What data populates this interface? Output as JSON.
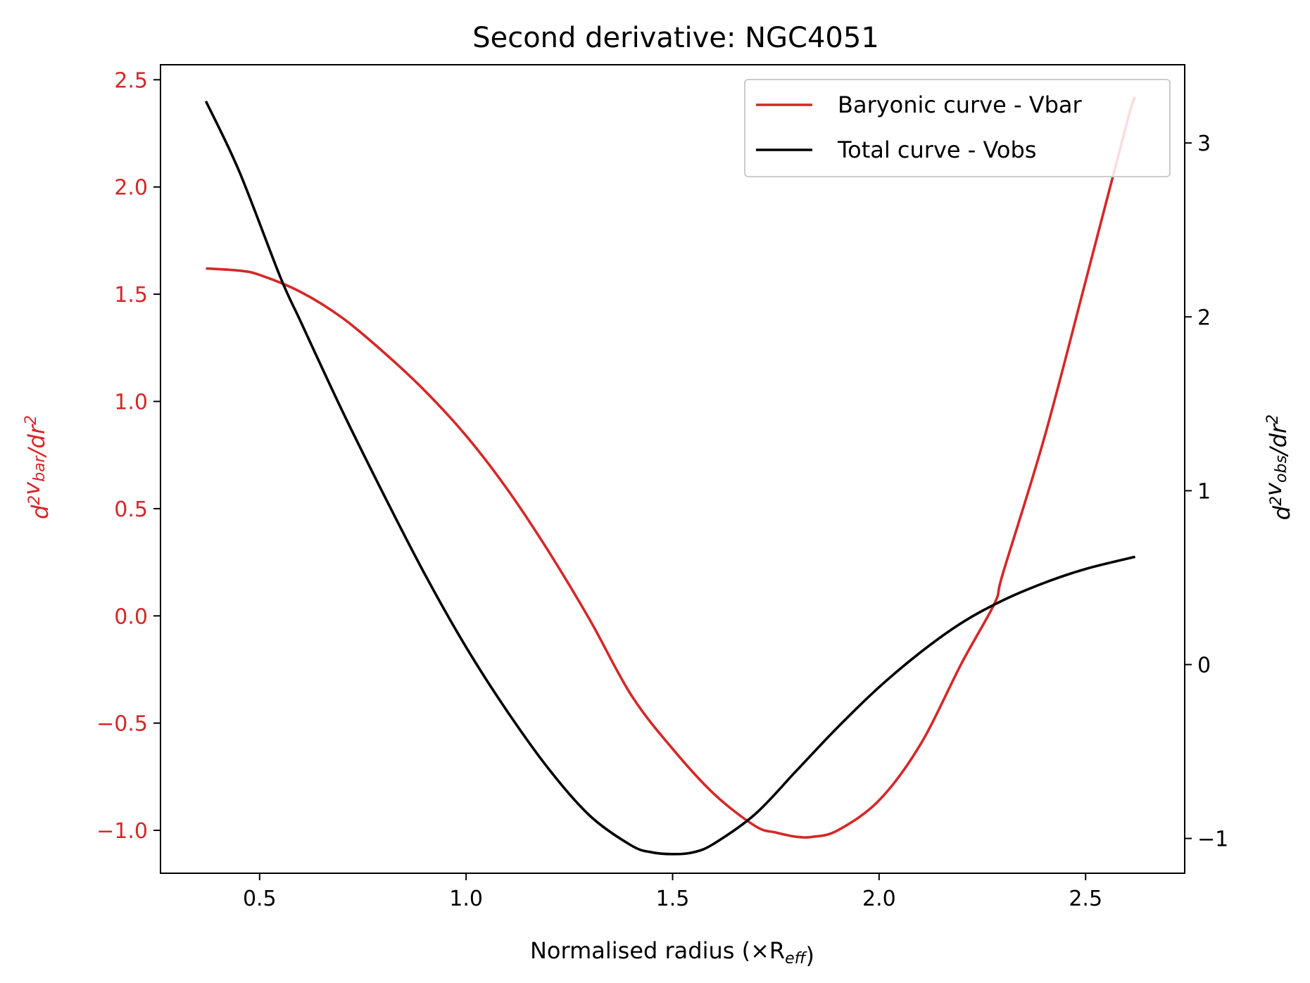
{
  "chart_data": {
    "type": "line",
    "title": "Second derivative: NGC4051",
    "xlabel": "Normalised radius (×R_eff)",
    "ylabel_left": "d²v_bar/dr²",
    "ylabel_right": "d²v_obs/dr²",
    "xlim": [
      0.26,
      2.74
    ],
    "ylim_left": [
      -1.2,
      2.57
    ],
    "ylim_right": [
      -1.2,
      3.45
    ],
    "x_ticks": [
      "0.5",
      "1.0",
      "1.5",
      "2.0",
      "2.5"
    ],
    "x_tick_values": [
      0.5,
      1.0,
      1.5,
      2.0,
      2.5
    ],
    "y_left_ticks": [
      "−1.0",
      "−0.5",
      "0.0",
      "0.5",
      "1.0",
      "1.5",
      "2.0",
      "2.5"
    ],
    "y_left_tick_values": [
      -1.0,
      -0.5,
      0.0,
      0.5,
      1.0,
      1.5,
      2.0,
      2.5
    ],
    "y_right_ticks": [
      "−1",
      "0",
      "1",
      "2",
      "3"
    ],
    "y_right_tick_values": [
      -1,
      0,
      1,
      2,
      3
    ],
    "legend_position": "upper right",
    "grid": false,
    "series": [
      {
        "name": "Baryonic curve - Vbar",
        "axis": "left",
        "color": "#d62728",
        "x": [
          0.37,
          0.45,
          0.5,
          0.6,
          0.7,
          0.8,
          0.9,
          1.0,
          1.1,
          1.2,
          1.3,
          1.4,
          1.5,
          1.6,
          1.7,
          1.75,
          1.8,
          1.84,
          1.9,
          2.0,
          2.1,
          2.2,
          2.28,
          2.3,
          2.4,
          2.5,
          2.6,
          2.62
        ],
        "y": [
          1.62,
          1.61,
          1.59,
          1.51,
          1.39,
          1.23,
          1.05,
          0.84,
          0.59,
          0.3,
          -0.02,
          -0.37,
          -0.62,
          -0.83,
          -0.98,
          -1.01,
          -1.03,
          -1.03,
          -1.0,
          -0.86,
          -0.6,
          -0.22,
          0.06,
          0.2,
          0.83,
          1.56,
          2.3,
          2.42
        ]
      },
      {
        "name": "Total curve - Vobs",
        "axis": "right",
        "color": "#000000",
        "x": [
          0.37,
          0.45,
          0.55,
          0.6,
          0.7,
          0.8,
          0.9,
          1.0,
          1.1,
          1.2,
          1.3,
          1.4,
          1.45,
          1.5,
          1.55,
          1.6,
          1.7,
          1.8,
          1.9,
          2.0,
          2.1,
          2.2,
          2.3,
          2.4,
          2.5,
          2.62
        ],
        "y": [
          3.24,
          2.84,
          2.23,
          1.97,
          1.46,
          0.98,
          0.52,
          0.1,
          -0.27,
          -0.6,
          -0.87,
          -1.04,
          -1.08,
          -1.09,
          -1.08,
          -1.03,
          -0.86,
          -0.61,
          -0.36,
          -0.13,
          0.07,
          0.24,
          0.37,
          0.47,
          0.55,
          0.62
        ]
      }
    ]
  }
}
